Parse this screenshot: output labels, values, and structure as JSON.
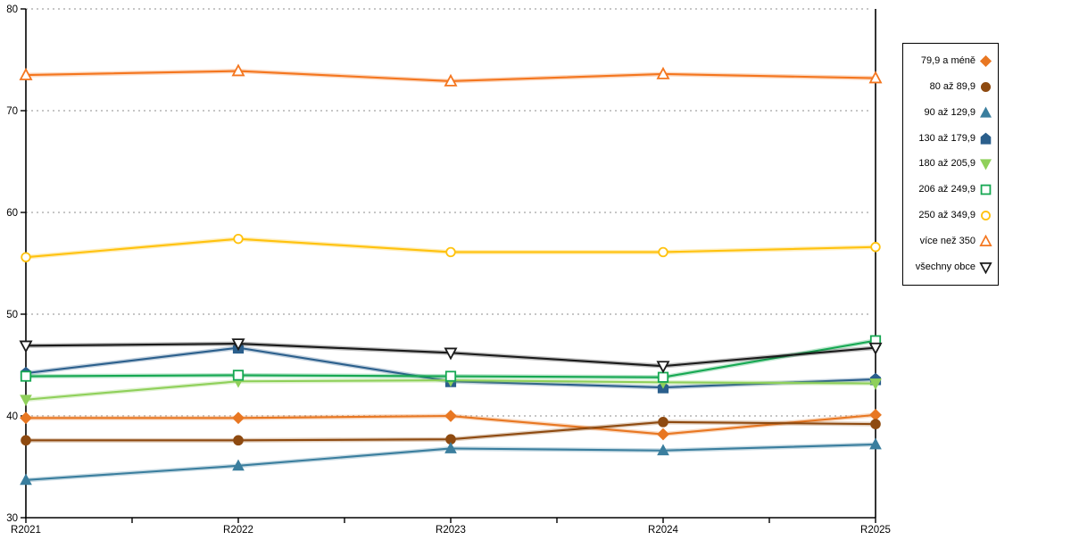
{
  "page": {
    "background": "#FFFFFF"
  },
  "chart_data": {
    "type": "line",
    "title": "",
    "x_labels": [
      "R2021",
      "R2022",
      "R2023",
      "R2024",
      "R2025"
    ],
    "x_minor_ticks": "midpoints",
    "ylim": [
      30,
      80
    ],
    "yticks": [
      30,
      40,
      50,
      60,
      70,
      80
    ],
    "grid": {
      "horizontal": true,
      "style": "dotted",
      "color": "#B3B3B3"
    },
    "axis_color": "#000000",
    "legend_position": "right",
    "series": [
      {
        "name": "79,9 a méně",
        "color": "#E87722",
        "marker": "diamond",
        "marker_fill": "filled",
        "values": [
          39.8,
          39.8,
          40.0,
          38.2,
          40.1
        ]
      },
      {
        "name": "80 až 89,9",
        "color": "#8E4A10",
        "marker": "circle",
        "marker_fill": "filled",
        "values": [
          37.6,
          37.6,
          37.7,
          39.4,
          39.2
        ]
      },
      {
        "name": "90 až 129,9",
        "color": "#3A7E9E",
        "marker": "triangle-up",
        "marker_fill": "filled",
        "values": [
          33.7,
          35.1,
          36.8,
          36.6,
          37.2
        ]
      },
      {
        "name": "130 až 179,9",
        "color": "#2B5F8C",
        "marker": "pentagon",
        "marker_fill": "filled",
        "values": [
          44.2,
          46.7,
          43.4,
          42.8,
          43.6
        ]
      },
      {
        "name": "180 až 205,9",
        "color": "#8FD05A",
        "marker": "triangle-down",
        "marker_fill": "filled",
        "values": [
          41.6,
          43.4,
          43.5,
          43.3,
          43.2
        ]
      },
      {
        "name": "206 až 249,9",
        "color": "#16A852",
        "marker": "square",
        "marker_fill": "open",
        "values": [
          43.9,
          44.0,
          43.9,
          43.8,
          47.4
        ]
      },
      {
        "name": "250 až 349,9",
        "color": "#FFC20E",
        "marker": "circle",
        "marker_fill": "open",
        "values": [
          55.6,
          57.4,
          56.1,
          56.1,
          56.6
        ]
      },
      {
        "name": "více než 350",
        "color": "#F4761F",
        "marker": "triangle-up",
        "marker_fill": "open",
        "values": [
          73.5,
          73.9,
          72.9,
          73.6,
          73.2
        ]
      },
      {
        "name": "všechny obce",
        "color": "#1A1A1A",
        "marker": "triangle-down",
        "marker_fill": "open",
        "values": [
          46.9,
          47.1,
          46.2,
          44.9,
          46.7
        ]
      }
    ]
  }
}
